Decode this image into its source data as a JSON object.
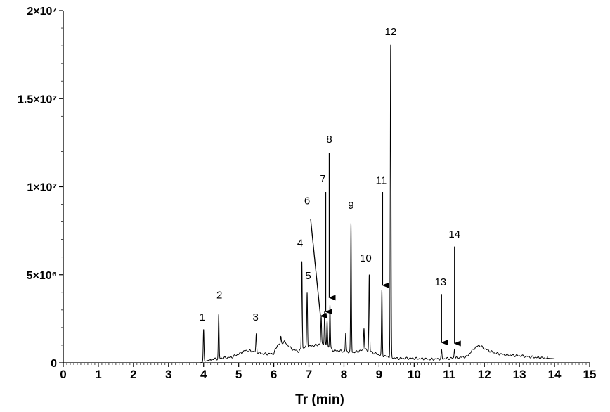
{
  "chart_data": {
    "type": "line",
    "xlabel": "Tr (min)",
    "ylabel": "",
    "xlim": [
      0,
      15
    ],
    "ylim": [
      0,
      20000000
    ],
    "x_ticks": [
      "0",
      "1",
      "2",
      "3",
      "4",
      "5",
      "6",
      "7",
      "8",
      "9",
      "10",
      "11",
      "12",
      "13",
      "14",
      "15"
    ],
    "y_ticks": [
      {
        "value": 0,
        "label": "0"
      },
      {
        "value": 5000000,
        "label": "5×10⁶"
      },
      {
        "value": 10000000,
        "label": "1×10⁷"
      },
      {
        "value": 15000000,
        "label": "1.5×10⁷"
      },
      {
        "value": 20000000,
        "label": "2×10⁷"
      }
    ],
    "grid": false,
    "series": [
      {
        "baseline": [
          [
            3.9,
            0
          ],
          [
            4.2,
            180000
          ],
          [
            4.5,
            260000
          ],
          [
            4.8,
            320000
          ],
          [
            5.0,
            500000
          ],
          [
            5.2,
            700000
          ],
          [
            5.4,
            650000
          ],
          [
            5.7,
            500000
          ],
          [
            6.0,
            520000
          ],
          [
            6.1,
            1000000
          ],
          [
            6.3,
            1200000
          ],
          [
            6.5,
            800000
          ],
          [
            6.7,
            650000
          ],
          [
            6.9,
            900000
          ],
          [
            7.2,
            1000000
          ],
          [
            7.4,
            1100000
          ],
          [
            7.7,
            700000
          ],
          [
            8.0,
            650000
          ],
          [
            8.3,
            600000
          ],
          [
            8.6,
            750000
          ],
          [
            9.0,
            450000
          ],
          [
            9.5,
            250000
          ],
          [
            10.0,
            250000
          ],
          [
            10.5,
            200000
          ],
          [
            11.0,
            250000
          ],
          [
            11.5,
            350000
          ],
          [
            11.7,
            800000
          ],
          [
            11.85,
            1000000
          ],
          [
            12.0,
            800000
          ],
          [
            12.3,
            550000
          ],
          [
            12.6,
            450000
          ],
          [
            13.0,
            400000
          ],
          [
            13.5,
            300000
          ],
          [
            14.0,
            230000
          ]
        ],
        "peaks": [
          {
            "x": 4.0,
            "y": 1900000
          },
          {
            "x": 4.43,
            "y": 2700000
          },
          {
            "x": 5.5,
            "y": 1600000
          },
          {
            "x": 6.2,
            "y": 1450000
          },
          {
            "x": 6.8,
            "y": 5800000
          },
          {
            "x": 6.95,
            "y": 4000000
          },
          {
            "x": 7.35,
            "y": 2600000
          },
          {
            "x": 7.45,
            "y": 2900000
          },
          {
            "x": 7.52,
            "y": 2400000
          },
          {
            "x": 7.6,
            "y": 3300000
          },
          {
            "x": 8.05,
            "y": 1700000
          },
          {
            "x": 8.2,
            "y": 7900000
          },
          {
            "x": 8.57,
            "y": 2000000
          },
          {
            "x": 8.72,
            "y": 5000000
          },
          {
            "x": 9.08,
            "y": 4100000
          },
          {
            "x": 9.33,
            "y": 18000000
          },
          {
            "x": 10.78,
            "y": 700000
          },
          {
            "x": 11.15,
            "y": 800000
          }
        ]
      }
    ],
    "annotations": [
      {
        "label": "1",
        "x": 3.96,
        "y": 2400000
      },
      {
        "label": "2",
        "x": 4.45,
        "y": 3650000
      },
      {
        "label": "3",
        "x": 5.48,
        "y": 2400000
      },
      {
        "label": "4",
        "x": 6.75,
        "y": 6600000
      },
      {
        "label": "5",
        "x": 6.98,
        "y": 4750000
      },
      {
        "label": "6",
        "x": 6.95,
        "y": 9000000
      },
      {
        "label": "7",
        "x": 7.4,
        "y": 10250000
      },
      {
        "label": "8",
        "x": 7.58,
        "y": 12500000
      },
      {
        "label": "9",
        "x": 8.2,
        "y": 8750000
      },
      {
        "label": "10",
        "x": 8.62,
        "y": 5750000
      },
      {
        "label": "11",
        "x": 9.06,
        "y": 10150000
      },
      {
        "label": "12",
        "x": 9.33,
        "y": 18600000
      },
      {
        "label": "13",
        "x": 10.75,
        "y": 4400000
      },
      {
        "label": "14",
        "x": 11.15,
        "y": 7100000
      }
    ],
    "arrows": [
      {
        "from": [
          7.05,
          8150000
        ],
        "to": [
          7.33,
          2650000
        ]
      },
      {
        "from": [
          7.48,
          9700000
        ],
        "to": [
          7.48,
          2900000
        ]
      },
      {
        "from": [
          7.58,
          11900000
        ],
        "to": [
          7.58,
          3700000
        ]
      },
      {
        "from": [
          9.1,
          9700000
        ],
        "to": [
          9.1,
          4400000
        ]
      },
      {
        "from": [
          10.78,
          3900000
        ],
        "to": [
          10.78,
          1150000
        ]
      },
      {
        "from": [
          11.15,
          6600000
        ],
        "to": [
          11.15,
          1100000
        ]
      }
    ]
  }
}
